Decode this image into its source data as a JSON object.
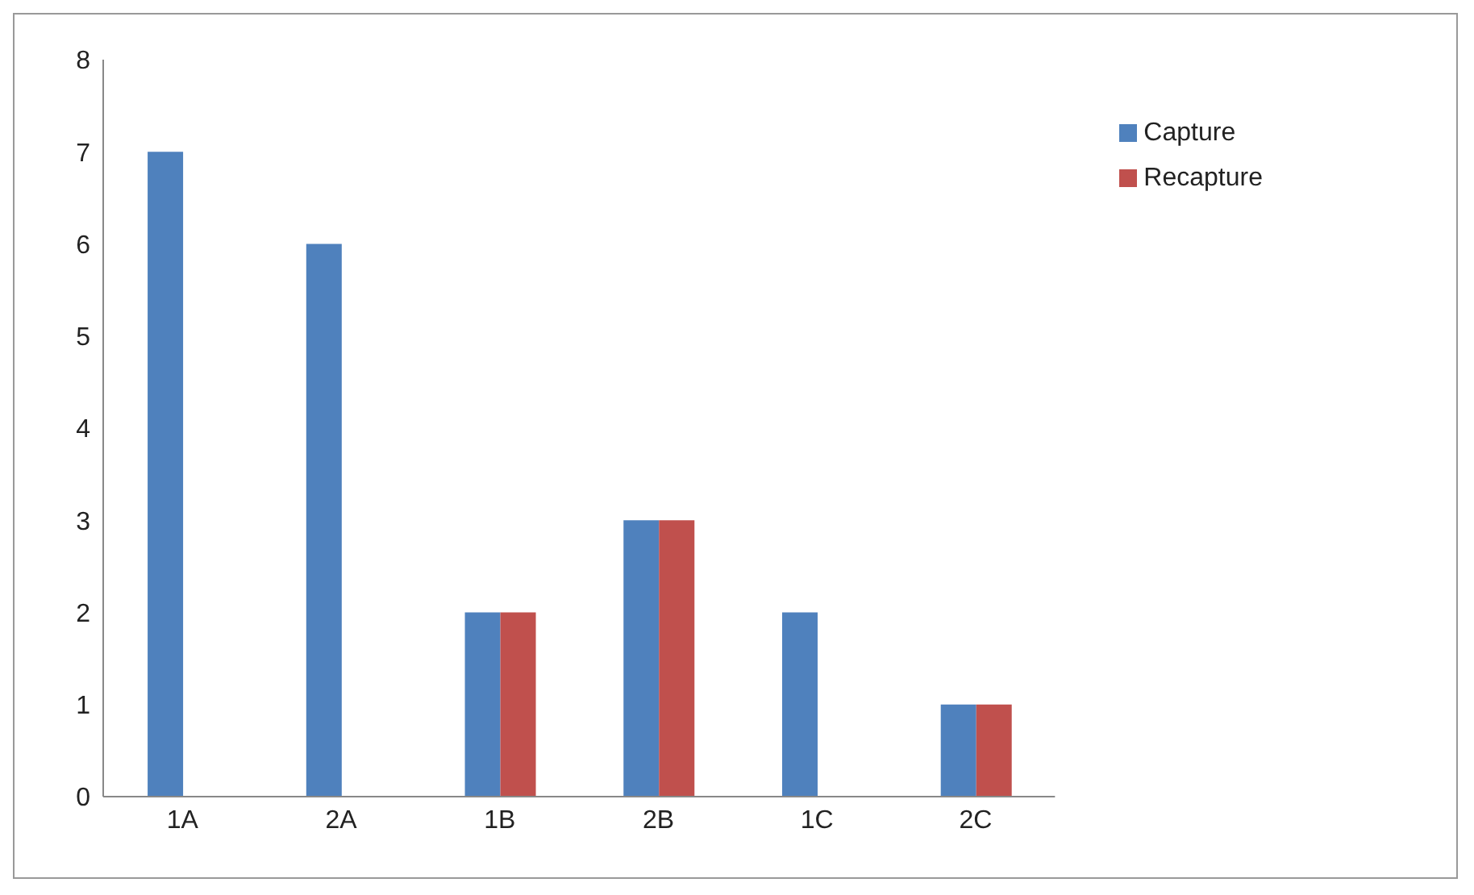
{
  "chart_data": {
    "type": "bar",
    "categories": [
      "1A",
      "2A",
      "1B",
      "2B",
      "1C",
      "2C"
    ],
    "series": [
      {
        "name": "Capture",
        "color": "#4f81bd",
        "values": [
          7,
          6,
          2,
          3,
          2,
          1
        ]
      },
      {
        "name": "Recapture",
        "color": "#c0504d",
        "values": [
          0,
          0,
          2,
          3,
          0,
          1
        ]
      }
    ],
    "ylim": [
      0,
      8
    ],
    "yticks": [
      0,
      1,
      2,
      3,
      4,
      5,
      6,
      7,
      8
    ],
    "grid": false,
    "legend": "top right"
  }
}
